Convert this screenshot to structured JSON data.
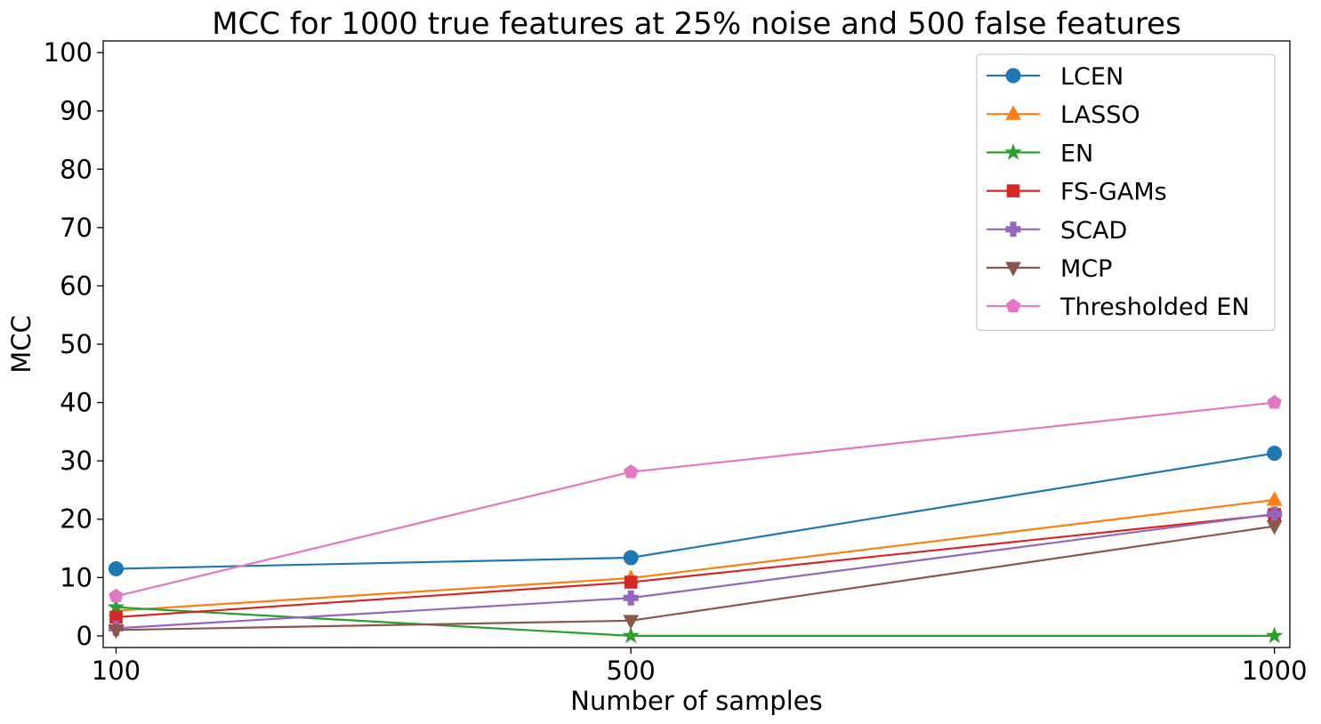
{
  "chart_data": {
    "type": "line",
    "title": "MCC for 1000 true features at 25% noise and 500 false features",
    "xlabel": "Number of samples",
    "ylabel": "MCC",
    "x": [
      100,
      500,
      1000
    ],
    "xticks": [
      "100",
      "500",
      "1000"
    ],
    "xlim": [
      90,
      1012
    ],
    "ylim": [
      -2,
      102
    ],
    "yticks": [
      "0",
      "10",
      "20",
      "30",
      "40",
      "50",
      "60",
      "70",
      "80",
      "90",
      "100"
    ],
    "grid": false,
    "legend_position": "top-right",
    "series": [
      {
        "name": "LCEN",
        "values": [
          11.5,
          13.4,
          31.3
        ],
        "color": "#1f77b4",
        "marker": "circle"
      },
      {
        "name": "LASSO",
        "values": [
          4.3,
          9.9,
          23.3
        ],
        "color": "#ff7f0e",
        "marker": "triangle-up"
      },
      {
        "name": "EN",
        "values": [
          4.9,
          0.0,
          0.0
        ],
        "color": "#2ca02c",
        "marker": "star"
      },
      {
        "name": "FS-GAMs",
        "values": [
          3.2,
          9.2,
          20.8
        ],
        "color": "#d62728",
        "marker": "square"
      },
      {
        "name": "SCAD",
        "values": [
          1.3,
          6.5,
          20.9
        ],
        "color": "#9467bd",
        "marker": "plus"
      },
      {
        "name": "MCP",
        "values": [
          1.0,
          2.6,
          18.8
        ],
        "color": "#8c564b",
        "marker": "triangle-down"
      },
      {
        "name": "Thresholded EN",
        "values": [
          6.8,
          28.1,
          40.0
        ],
        "color": "#e377c2",
        "marker": "pentagon"
      }
    ]
  }
}
